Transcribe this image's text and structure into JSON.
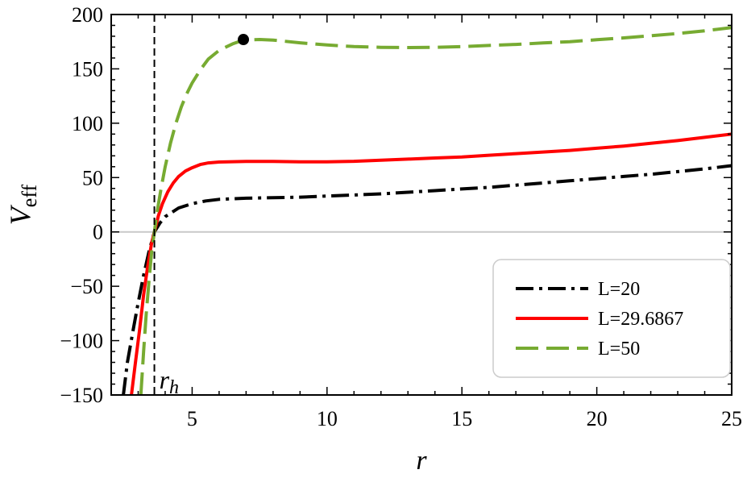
{
  "chart_data": {
    "type": "line",
    "xlabel": "r",
    "ylabel_main": "V",
    "ylabel_sub": "eff",
    "xlim": [
      2,
      25
    ],
    "ylim": [
      -150,
      200
    ],
    "x_ticks": [
      5,
      10,
      15,
      20,
      25
    ],
    "y_ticks": [
      -150,
      -100,
      -50,
      0,
      50,
      100,
      150,
      200
    ],
    "y_tick_labels": [
      "−150",
      "−100",
      "−50",
      "0",
      "50",
      "100",
      "150",
      "200"
    ],
    "grid": false,
    "zero_line": true,
    "legend_position": "bottom-right",
    "horizon": {
      "label_main": "r",
      "label_sub": "h",
      "x": 3.6
    },
    "marker": {
      "x": 6.9,
      "y": 177
    },
    "series": [
      {
        "name": "L=20",
        "color": "#000000",
        "style": "dash-dot",
        "points": [
          [
            2.45,
            -150
          ],
          [
            2.6,
            -120
          ],
          [
            2.8,
            -92
          ],
          [
            3.0,
            -65
          ],
          [
            3.2,
            -40
          ],
          [
            3.4,
            -18
          ],
          [
            3.6,
            0
          ],
          [
            3.8,
            8
          ],
          [
            4.0,
            14
          ],
          [
            4.5,
            22
          ],
          [
            5.0,
            26
          ],
          [
            5.5,
            28.5
          ],
          [
            6,
            30
          ],
          [
            7,
            31
          ],
          [
            8,
            31.5
          ],
          [
            9,
            32
          ],
          [
            10,
            33
          ],
          [
            11,
            34
          ],
          [
            12,
            35
          ],
          [
            13,
            36.5
          ],
          [
            14,
            38
          ],
          [
            15,
            39.5
          ],
          [
            16,
            41
          ],
          [
            17,
            43
          ],
          [
            18,
            45
          ],
          [
            19,
            47
          ],
          [
            20,
            49
          ],
          [
            21,
            51
          ],
          [
            22,
            53
          ],
          [
            23,
            55.5
          ],
          [
            24,
            58
          ],
          [
            25,
            61
          ]
        ]
      },
      {
        "name": "L=29.6867",
        "color": "#ff0000",
        "style": "solid",
        "points": [
          [
            2.75,
            -150
          ],
          [
            2.9,
            -120
          ],
          [
            3.05,
            -90
          ],
          [
            3.2,
            -58
          ],
          [
            3.35,
            -32
          ],
          [
            3.5,
            -10
          ],
          [
            3.6,
            0
          ],
          [
            3.75,
            15
          ],
          [
            3.9,
            26
          ],
          [
            4.1,
            37
          ],
          [
            4.3,
            45
          ],
          [
            4.5,
            51
          ],
          [
            4.75,
            56
          ],
          [
            5.0,
            59
          ],
          [
            5.3,
            62
          ],
          [
            5.6,
            63.5
          ],
          [
            6,
            64.3
          ],
          [
            7,
            64.8
          ],
          [
            8,
            64.8
          ],
          [
            9,
            64.5
          ],
          [
            10,
            64.5
          ],
          [
            11,
            65
          ],
          [
            12,
            66
          ],
          [
            13,
            67
          ],
          [
            14,
            68
          ],
          [
            15,
            69
          ],
          [
            16,
            70.5
          ],
          [
            17,
            72
          ],
          [
            18,
            73.5
          ],
          [
            19,
            75
          ],
          [
            20,
            77
          ],
          [
            21,
            79
          ],
          [
            22,
            81.5
          ],
          [
            23,
            84
          ],
          [
            24,
            87
          ],
          [
            25,
            90
          ]
        ]
      },
      {
        "name": "L=50",
        "color": "#77ab32",
        "style": "long-dash",
        "points": [
          [
            3.1,
            -150
          ],
          [
            3.2,
            -110
          ],
          [
            3.3,
            -75
          ],
          [
            3.4,
            -45
          ],
          [
            3.5,
            -18
          ],
          [
            3.6,
            0
          ],
          [
            3.7,
            18
          ],
          [
            3.85,
            40
          ],
          [
            4.0,
            60
          ],
          [
            4.2,
            82
          ],
          [
            4.4,
            100
          ],
          [
            4.6,
            115
          ],
          [
            4.8,
            127
          ],
          [
            5.0,
            137
          ],
          [
            5.3,
            149
          ],
          [
            5.6,
            159
          ],
          [
            6,
            167
          ],
          [
            6.5,
            173
          ],
          [
            6.9,
            176.5
          ],
          [
            7.5,
            177
          ],
          [
            8,
            176.5
          ],
          [
            9,
            174
          ],
          [
            10,
            172
          ],
          [
            11,
            170.5
          ],
          [
            12,
            169.8
          ],
          [
            13,
            169.6
          ],
          [
            14,
            169.8
          ],
          [
            15,
            170.5
          ],
          [
            16,
            171.5
          ],
          [
            17,
            172.5
          ],
          [
            18,
            173.8
          ],
          [
            19,
            175
          ],
          [
            20,
            176.8
          ],
          [
            21,
            178.5
          ],
          [
            22,
            180.5
          ],
          [
            23,
            182.5
          ],
          [
            24,
            185
          ],
          [
            25,
            188
          ]
        ]
      }
    ]
  }
}
